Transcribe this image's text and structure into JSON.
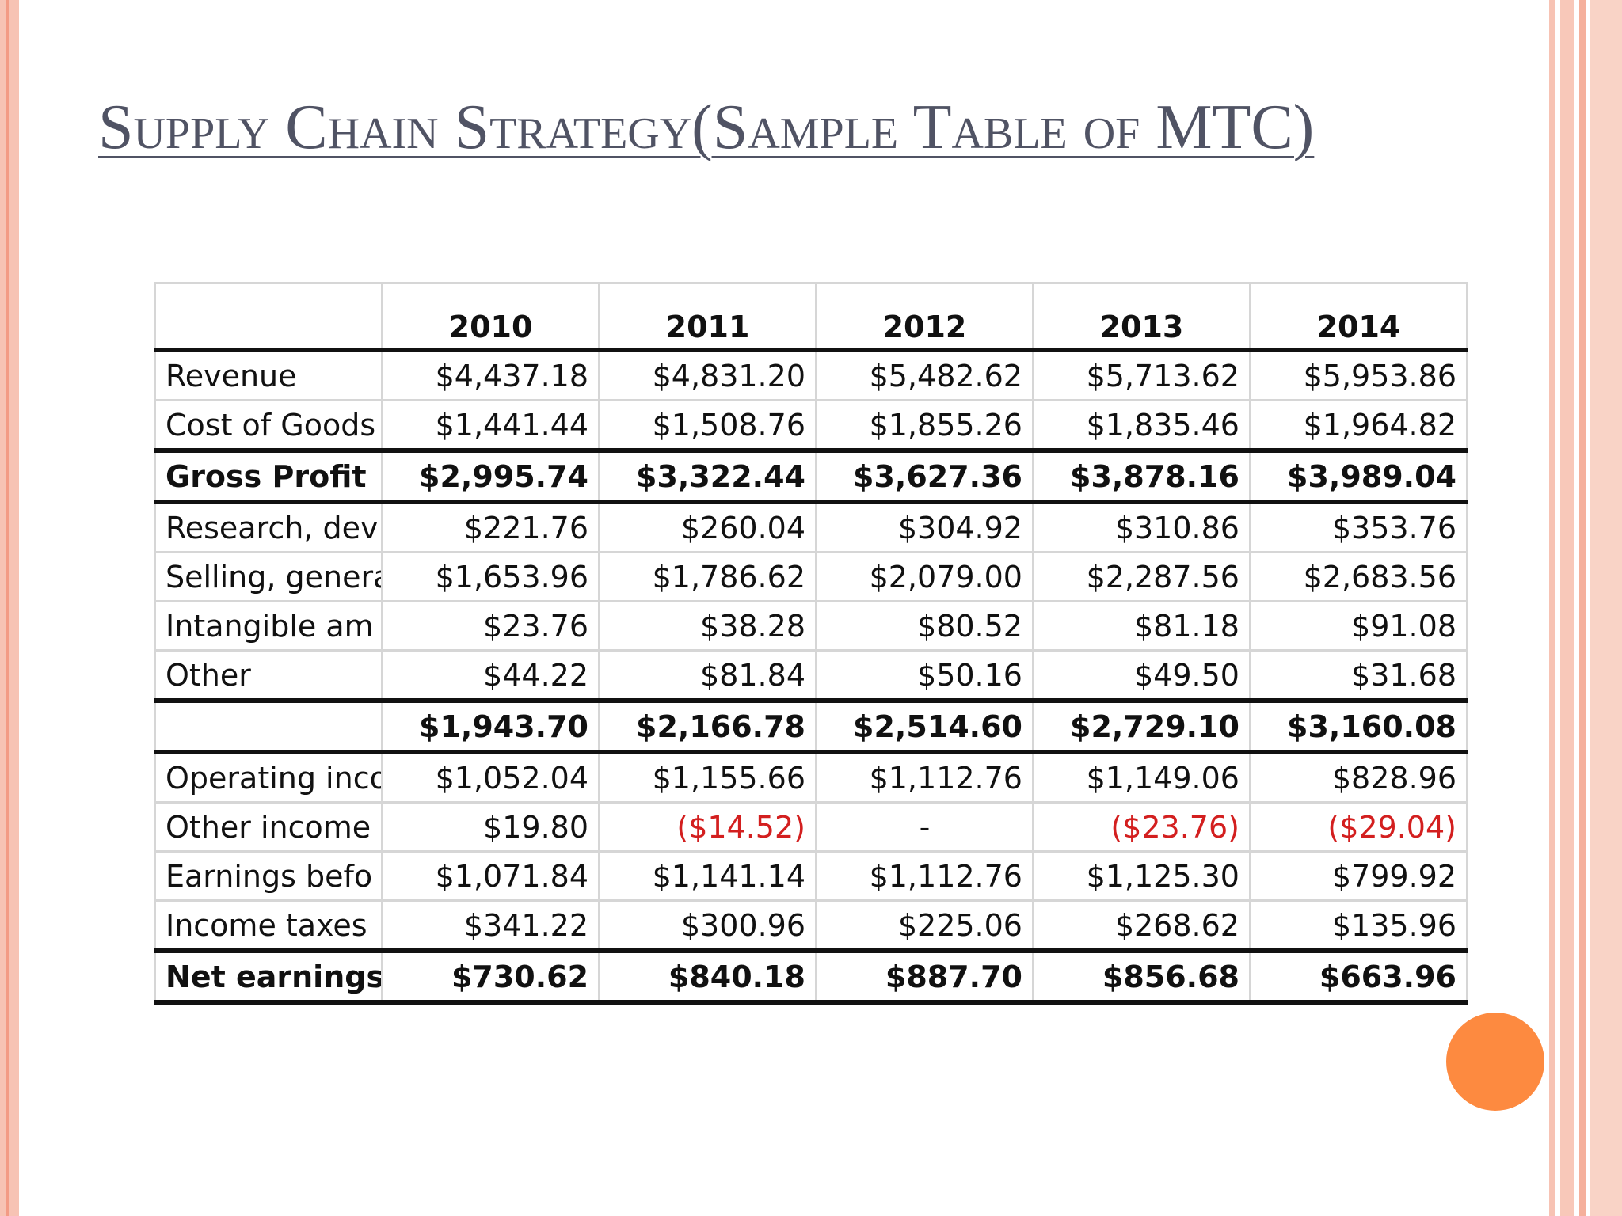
{
  "slide": {
    "title": "Supply Chain Strategy(Sample Table of MTC)"
  },
  "colors": {
    "accent_orange": "#fd8a40",
    "border_salmon": "#f39b85",
    "negative_red": "#d31f1f",
    "title_gray": "#505364"
  },
  "table": {
    "headers": [
      "",
      "2010",
      "2011",
      "2012",
      "2013",
      "2014"
    ],
    "rows": [
      {
        "label": "Revenue",
        "values": [
          "$4,437.18",
          "$4,831.20",
          "$5,482.62",
          "$5,713.62",
          "$5,953.86"
        ]
      },
      {
        "label": "Cost of Goods",
        "values": [
          "$1,441.44",
          "$1,508.76",
          "$1,855.26",
          "$1,835.46",
          "$1,964.82"
        ]
      },
      {
        "label": "Gross Profit",
        "values": [
          "$2,995.74",
          "$3,322.44",
          "$3,627.36",
          "$3,878.16",
          "$3,989.04"
        ]
      },
      {
        "label": "Research, dev",
        "values": [
          "$221.76",
          "$260.04",
          "$304.92",
          "$310.86",
          "$353.76"
        ]
      },
      {
        "label": "Selling, genera",
        "values": [
          "$1,653.96",
          "$1,786.62",
          "$2,079.00",
          "$2,287.56",
          "$2,683.56"
        ]
      },
      {
        "label": "Intangible am",
        "values": [
          "$23.76",
          "$38.28",
          "$80.52",
          "$81.18",
          "$91.08"
        ]
      },
      {
        "label": "Other",
        "values": [
          "$44.22",
          "$81.84",
          "$50.16",
          "$49.50",
          "$31.68"
        ]
      },
      {
        "label": "",
        "values": [
          "$1,943.70",
          "$2,166.78",
          "$2,514.60",
          "$2,729.10",
          "$3,160.08"
        ]
      },
      {
        "label": "Operating inco",
        "values": [
          "$1,052.04",
          "$1,155.66",
          "$1,112.76",
          "$1,149.06",
          "$828.96"
        ]
      },
      {
        "label": "Other income",
        "values": [
          "$19.80",
          "($14.52)",
          "-",
          "($23.76)",
          "($29.04)"
        ]
      },
      {
        "label": "Earnings befo",
        "values": [
          "$1,071.84",
          "$1,141.14",
          "$1,112.76",
          "$1,125.30",
          "$799.92"
        ]
      },
      {
        "label": "Income taxes",
        "values": [
          "$341.22",
          "$300.96",
          "$225.06",
          "$268.62",
          "$135.96"
        ]
      },
      {
        "label": "Net earnings",
        "values": [
          "$730.62",
          "$840.18",
          "$887.70",
          "$856.68",
          "$663.96"
        ]
      }
    ]
  }
}
